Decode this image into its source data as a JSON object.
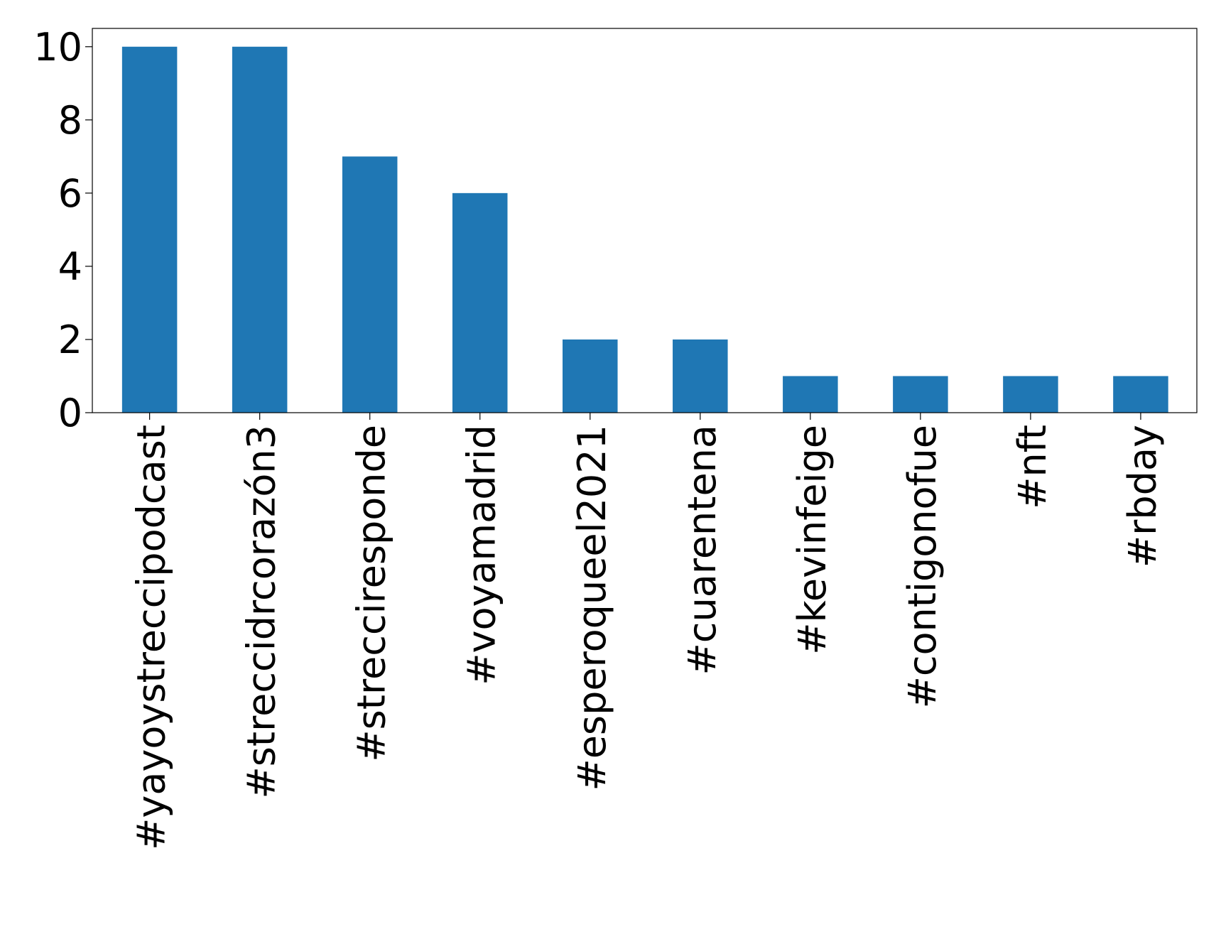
{
  "chart_data": {
    "type": "bar",
    "title": "",
    "xlabel": "",
    "ylabel": "",
    "categories": [
      "#yayoystreccipodcast",
      "#streccidrcorazón3",
      "#strecciresponde",
      "#voyamadrid",
      "#esperoqueel2021",
      "#cuarentena",
      "#kevinfeige",
      "#contigonofue",
      "#nft",
      "#rbday"
    ],
    "values": [
      10,
      10,
      7,
      6,
      2,
      2,
      1,
      1,
      1,
      1
    ],
    "ylim": [
      0,
      10.5
    ],
    "yticks": [
      "0",
      "2",
      "4",
      "6",
      "8",
      "10"
    ],
    "bar_color": "#1f77b4",
    "grid": false,
    "legend": "none"
  }
}
